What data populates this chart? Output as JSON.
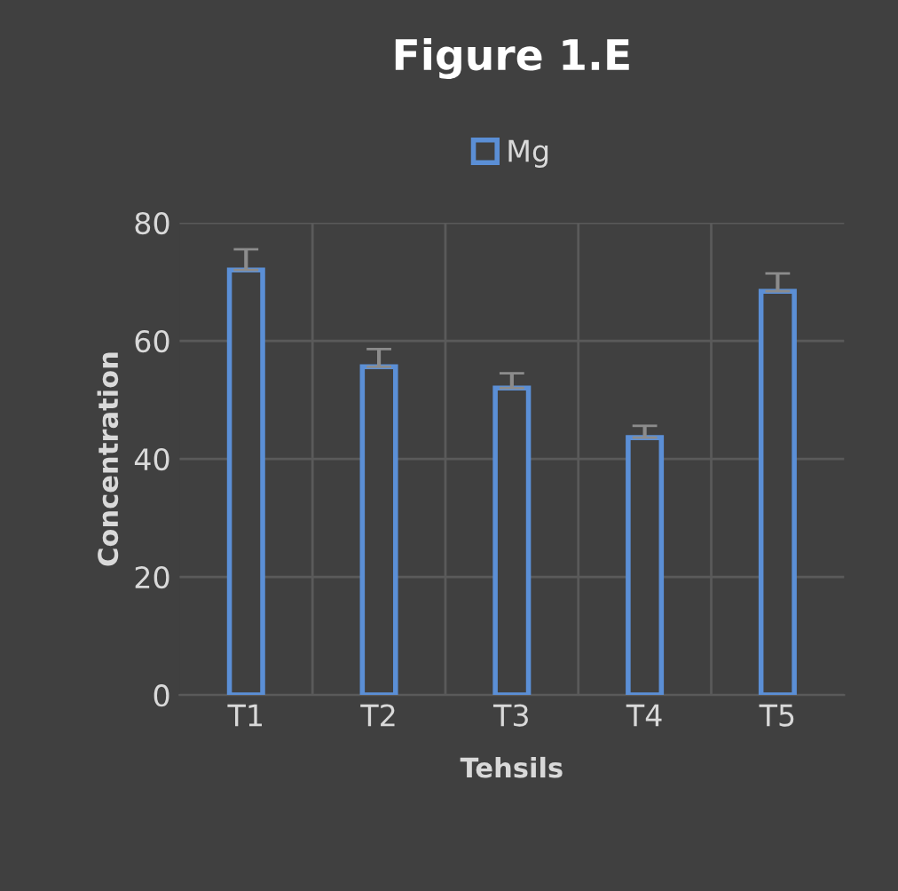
{
  "chart_data": {
    "type": "bar",
    "title": "Figure 1.E",
    "xlabel": "Tehsils",
    "ylabel": "Concentration",
    "categories": [
      "T1",
      "T2",
      "T3",
      "T4",
      "T5"
    ],
    "series": [
      {
        "name": "Mg",
        "color": "#5b8fd6",
        "values": [
          72,
          55.6,
          52,
          43.6,
          68.4
        ],
        "errors": [
          3.5,
          3,
          2.5,
          2,
          3
        ]
      }
    ],
    "ylim": [
      0,
      80
    ],
    "yticks": [
      0,
      20,
      40,
      60,
      80
    ],
    "grid": true,
    "legend": "top"
  }
}
